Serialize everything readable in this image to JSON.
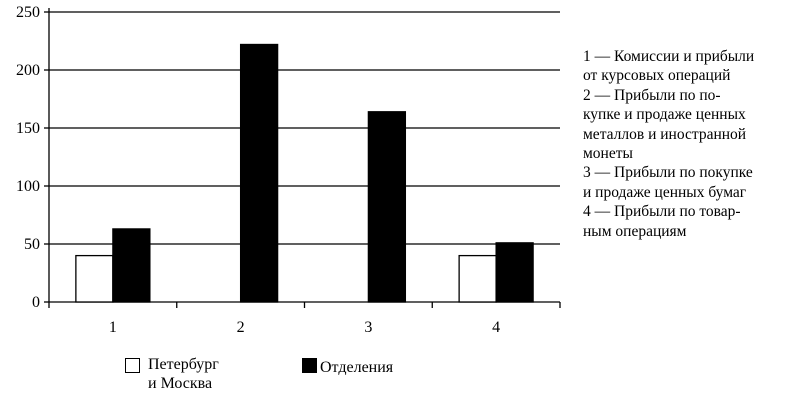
{
  "chart_data": {
    "type": "bar",
    "categories": [
      "1",
      "2",
      "3",
      "4"
    ],
    "series": [
      {
        "name": "Петербург\nи Москва",
        "color": "#ffffff",
        "values": [
          40,
          0,
          0,
          40
        ]
      },
      {
        "name": "Отделения",
        "color": "#000000",
        "values": [
          63,
          222,
          164,
          51
        ]
      }
    ],
    "title": "",
    "xlabel": "",
    "ylabel": "",
    "ylim": [
      0,
      250
    ],
    "yticks": [
      0,
      50,
      100,
      150,
      200,
      250
    ],
    "grid": true,
    "legend": "bottom"
  },
  "notes": [
    "1 — Комиссии и прибыли\nот курсовых операций",
    "2 — Прибыли по по-\nкупке и продаже ценных\nметаллов  и иностранной\nмонеты",
    "3 — Прибыли по покупке\nи продаже ценных бумаг",
    "4 — Прибыли по товар-\nным операциям"
  ]
}
